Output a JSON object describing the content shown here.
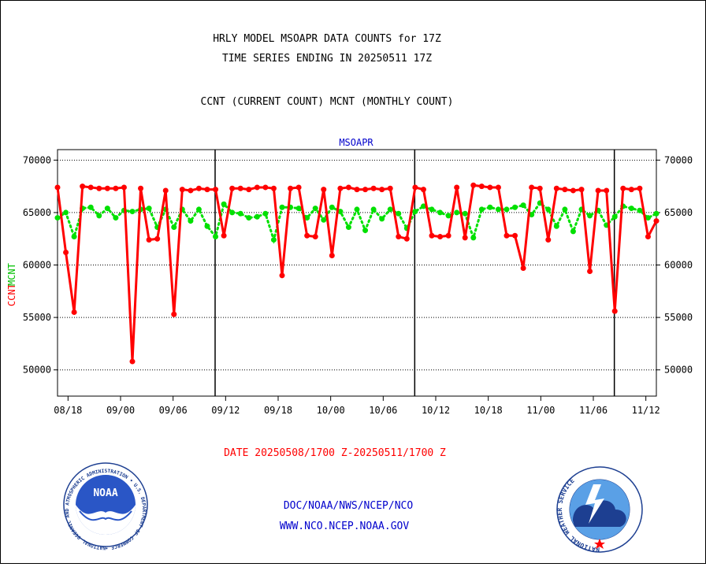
{
  "title_line1": "HRLY MODEL MSOAPR DATA COUNTS for 17Z",
  "title_line2": "TIME SERIES ENDING IN 20250511 17Z",
  "subtitle": "CCNT (CURRENT COUNT) MCNT (MONTHLY COUNT)",
  "footer": {
    "date_range": "DATE 20250508/1700 Z-20250511/1700 Z",
    "org_path": "DOC/NOAA/NWS/NCEP/NCO",
    "website": "WWW.NCO.NCEP.NOAA.GOV"
  },
  "logos": {
    "noaa_text": "NOAA",
    "noaa_ring": "NATIONAL OCEANIC AND ATMOSPHERIC ADMINISTRATION • U.S. DEPARTMENT OF COMMERCE •",
    "nws_ring": "NATIONAL WEATHER SERVICE"
  },
  "chart_data": {
    "type": "line",
    "title": "MSOAPR",
    "ylabel_ccnt": "CCNT",
    "ylabel_mcnt": "MCNT",
    "ylim": [
      47500,
      71000
    ],
    "yticks": [
      50000,
      55000,
      60000,
      65000,
      70000
    ],
    "ytick_labels": [
      "50000",
      "55000",
      "60000",
      "65000",
      "70000"
    ],
    "xlim": [
      0,
      114
    ],
    "xticks": [
      2,
      12,
      22,
      32,
      42,
      52,
      62,
      72,
      82,
      92,
      102,
      112
    ],
    "xtick_labels": [
      "08/18",
      "09/00",
      "09/06",
      "09/12",
      "09/18",
      "10/00",
      "10/06",
      "10/12",
      "10/18",
      "11/00",
      "11/06",
      "11/12"
    ],
    "separators_x": [
      30,
      68,
      106
    ],
    "grid": true,
    "colors": {
      "ccnt": "#ff0000",
      "mcnt": "#00e000",
      "axis": "#000000",
      "title": "#000000",
      "plot_title": "#0000cc",
      "footer_date": "#ff0000",
      "footer_links": "#0000cc"
    },
    "series": [
      {
        "name": "CCNT",
        "values": [
          67400,
          61200,
          55500,
          67500,
          67400,
          67300,
          67300,
          67300,
          67400,
          50800,
          67300,
          62400,
          62500,
          67100,
          55300,
          67200,
          67100,
          67300,
          67200,
          67200,
          62800,
          67300,
          67300,
          67200,
          67400,
          67400,
          67300,
          59000,
          67300,
          67400,
          62800,
          62700,
          67200,
          60900,
          67300,
          67400,
          67200,
          67200,
          67300,
          67200,
          67300,
          62700,
          62500,
          67400,
          67200,
          62800,
          62700,
          62800,
          67400,
          62600,
          67600,
          67500,
          67400,
          67400,
          62800,
          62800,
          59700,
          67400,
          67300,
          62400,
          67300,
          67200,
          67100,
          67200,
          59400,
          67100,
          67100,
          55600,
          67300,
          67200,
          67300,
          62700,
          64200
        ]
      },
      {
        "name": "MCNT",
        "values": [
          64500,
          65000,
          62700,
          65400,
          65500,
          64700,
          65400,
          64500,
          65200,
          65100,
          65300,
          65400,
          63600,
          65300,
          63600,
          65300,
          64200,
          65300,
          63700,
          62700,
          65800,
          65000,
          64900,
          64500,
          64600,
          64900,
          62400,
          65500,
          65500,
          65400,
          64500,
          65400,
          64300,
          65500,
          65100,
          63600,
          65300,
          63300,
          65300,
          64400,
          65300,
          64900,
          63500,
          65100,
          65600,
          65300,
          65000,
          64700,
          65000,
          64900,
          62600,
          65300,
          65500,
          65300,
          65300,
          65500,
          65700,
          64800,
          65900,
          65300,
          63700,
          65300,
          63200,
          65300,
          64700,
          65200,
          63800,
          64600,
          65600,
          65400,
          65200,
          64500,
          64900
        ]
      }
    ]
  }
}
